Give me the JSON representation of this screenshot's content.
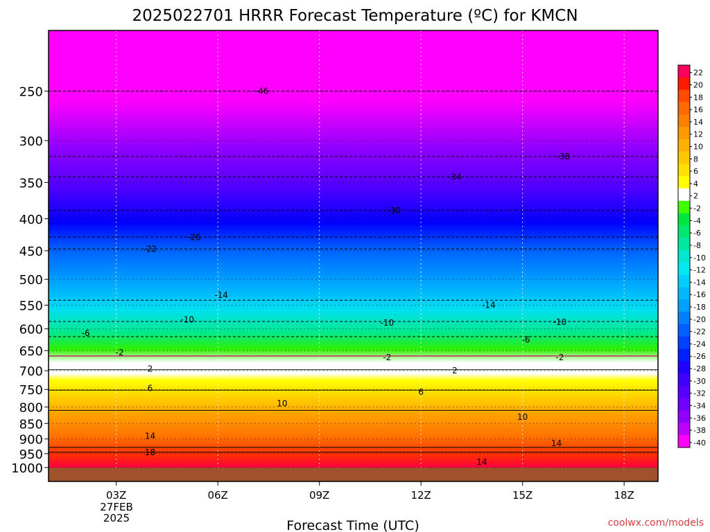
{
  "chart_data": {
    "type": "heatmap",
    "title": "2025022701 HRRR Forecast Temperature (ºC) for KMCN",
    "xlabel": "Forecast Time (UTC)",
    "ylabel": "",
    "x_ticks": [
      {
        "label": "03Z",
        "hour": 3
      },
      {
        "label": "06Z",
        "hour": 6
      },
      {
        "label": "09Z",
        "hour": 9
      },
      {
        "label": "12Z",
        "hour": 12
      },
      {
        "label": "15Z",
        "hour": 15
      },
      {
        "label": "18Z",
        "hour": 18
      }
    ],
    "xlim": [
      1.0,
      19.0
    ],
    "date_label_day": "27FEB",
    "date_label_year": "2025",
    "y_ticks": [
      250,
      300,
      350,
      400,
      450,
      500,
      550,
      600,
      650,
      700,
      750,
      800,
      850,
      900,
      950,
      1000
    ],
    "ylim_hpa": [
      200,
      1000
    ],
    "y_scale": "log",
    "grid": true,
    "colorbar_labels": [
      "22",
      "20",
      "18",
      "16",
      "14",
      "12",
      "10",
      "8",
      "6",
      "4",
      "2",
      "-2",
      "-4",
      "-6",
      "-8",
      "-10",
      "-12",
      "-14",
      "-16",
      "-18",
      "-20",
      "-22",
      "-24",
      "-26",
      "-28",
      "-30",
      "-32",
      "-34",
      "-36",
      "-38",
      "-40"
    ],
    "colorbar_colors": [
      "#ff0060",
      "#ff1a00",
      "#ff4a00",
      "#ff6a00",
      "#ff8000",
      "#ff9a00",
      "#ffb000",
      "#ffc800",
      "#ffe000",
      "#ffff00",
      "#ffffff",
      "#40ff00",
      "#00e840",
      "#00e870",
      "#00e8a0",
      "#00e8d0",
      "#00e8f0",
      "#00d0ff",
      "#00b8ff",
      "#00a0ff",
      "#0080ff",
      "#0060ff",
      "#0040ff",
      "#0020ff",
      "#2000ff",
      "#4000ff",
      "#5800ff",
      "#7000ff",
      "#9000ff",
      "#c000ff",
      "#ff00ff"
    ],
    "isotherms": [
      {
        "value": -46,
        "hour": 7.3,
        "hpa": 250
      },
      {
        "value": -38,
        "hour": 16.2,
        "hpa": 318
      },
      {
        "value": -34,
        "hour": 13.0,
        "hpa": 343
      },
      {
        "value": -30,
        "hour": 11.2,
        "hpa": 388
      },
      {
        "value": -26,
        "hour": 5.3,
        "hpa": 428
      },
      {
        "value": -22,
        "hour": 4.0,
        "hpa": 447
      },
      {
        "value": -14,
        "hour": 6.1,
        "hpa": 530
      },
      {
        "value": -14,
        "hour": 14.0,
        "hpa": 550
      },
      {
        "value": -10,
        "hour": 5.1,
        "hpa": 580
      },
      {
        "value": -10,
        "hour": 11.0,
        "hpa": 587
      },
      {
        "value": -10,
        "hour": 16.1,
        "hpa": 585
      },
      {
        "value": -6,
        "hour": 2.1,
        "hpa": 610
      },
      {
        "value": -6,
        "hour": 15.1,
        "hpa": 625
      },
      {
        "value": -2,
        "hour": 3.1,
        "hpa": 655
      },
      {
        "value": -2,
        "hour": 11.0,
        "hpa": 667
      },
      {
        "value": -2,
        "hour": 16.1,
        "hpa": 667
      },
      {
        "value": 2,
        "hour": 4.0,
        "hpa": 695
      },
      {
        "value": 2,
        "hour": 13.0,
        "hpa": 700
      },
      {
        "value": 6,
        "hour": 4.0,
        "hpa": 747
      },
      {
        "value": 6,
        "hour": 12.0,
        "hpa": 757
      },
      {
        "value": 10,
        "hour": 7.9,
        "hpa": 790
      },
      {
        "value": 10,
        "hour": 15.0,
        "hpa": 830
      },
      {
        "value": 14,
        "hour": 4.0,
        "hpa": 890
      },
      {
        "value": 14,
        "hour": 16.0,
        "hpa": 915
      },
      {
        "value": 14,
        "hour": 13.8,
        "hpa": 980
      },
      {
        "value": 18,
        "hour": 4.0,
        "hpa": 945
      }
    ],
    "credit": "coolwx.com/models"
  }
}
